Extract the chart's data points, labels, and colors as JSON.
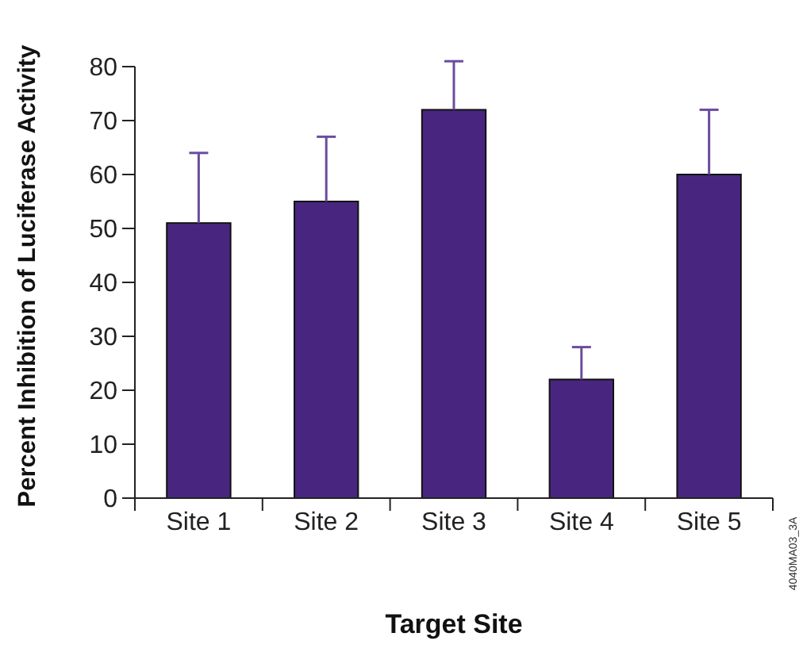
{
  "chart_data": {
    "type": "bar",
    "xlabel": "Target Site",
    "ylabel": "Percent Inhibition of Luciferase Activity",
    "categories": [
      "Site 1",
      "Site 2",
      "Site 3",
      "Site 4",
      "Site 5"
    ],
    "values": [
      51,
      55,
      72,
      22,
      60
    ],
    "errors": [
      [
        51,
        64
      ],
      [
        55,
        67
      ],
      [
        72,
        81
      ],
      [
        22,
        28
      ],
      [
        60,
        72
      ]
    ],
    "color": "#48267f",
    "ylim": [
      0,
      80
    ],
    "yticks": [
      0,
      10,
      20,
      30,
      40,
      50,
      60,
      70,
      80
    ],
    "annotations": [
      "4040MA03_3A"
    ]
  }
}
